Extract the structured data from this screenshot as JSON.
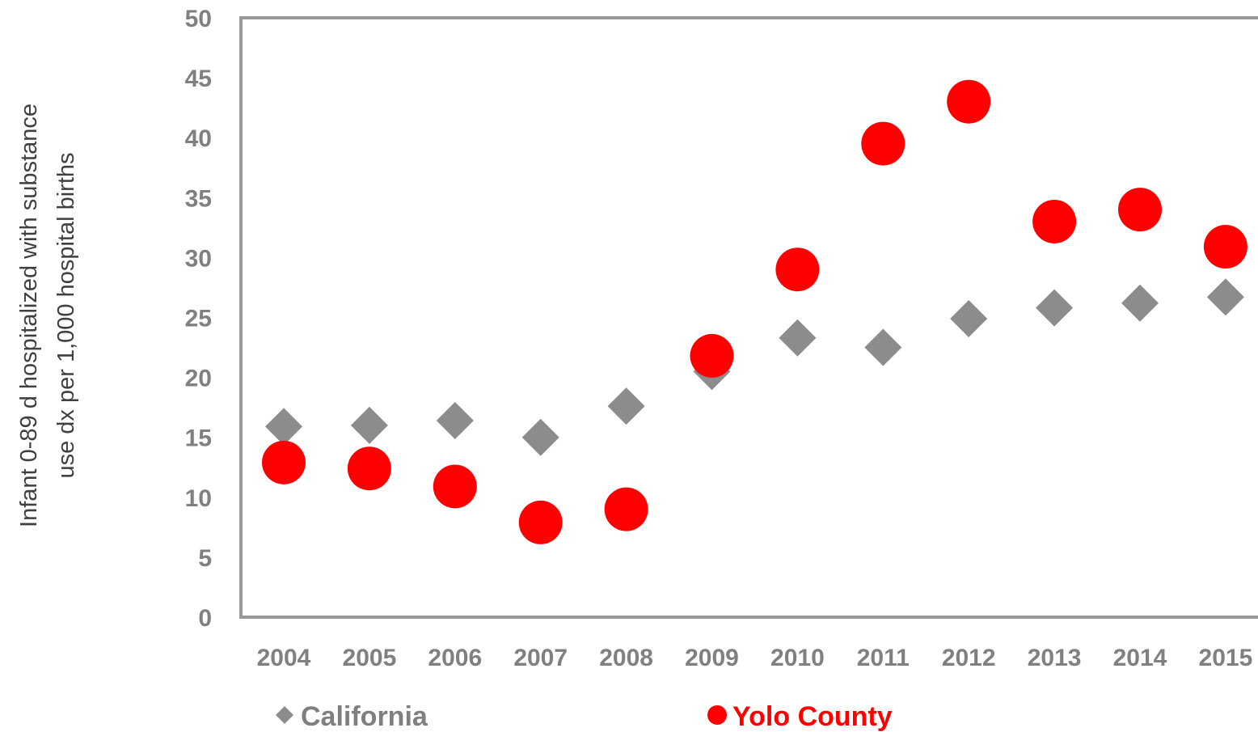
{
  "chart_data": {
    "type": "scatter",
    "title": "",
    "xlabel": "",
    "ylabel_lines": [
      "Infant 0-89 d hospitalized with substance",
      "use dx per 1,000 hospital births"
    ],
    "ylim": [
      0,
      50
    ],
    "y_ticks": [
      "0",
      "5",
      "10",
      "15",
      "20",
      "25",
      "30",
      "35",
      "40",
      "45",
      "50"
    ],
    "categories": [
      "2004",
      "2005",
      "2006",
      "2007",
      "2008",
      "2009",
      "2010",
      "2011",
      "2012",
      "2013",
      "2014",
      "2015"
    ],
    "grid": false,
    "legend_position": "bottom",
    "series": [
      {
        "name": "California",
        "marker": "diamond",
        "color": "#8c8c8c",
        "values": [
          15.9,
          16.0,
          16.4,
          15.0,
          17.6,
          20.5,
          23.3,
          22.5,
          24.9,
          25.8,
          26.2,
          26.7
        ]
      },
      {
        "name": "Yolo County",
        "marker": "circle",
        "color": "#ff0000",
        "values": [
          12.9,
          12.4,
          10.9,
          7.9,
          9.0,
          21.8,
          29.0,
          39.5,
          43.0,
          33.0,
          34.0,
          30.9
        ]
      }
    ]
  }
}
